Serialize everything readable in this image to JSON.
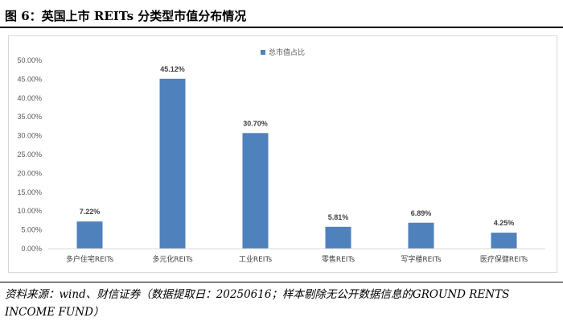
{
  "figure": {
    "title": "图 6：英国上市 REITs 分类型市值分布情况",
    "source": "资料来源：wind、财信证券（数据提取日：20250616；样本剔除无公开数据信息的GROUND RENTS INCOME FUND）"
  },
  "chart_data": {
    "type": "bar",
    "title": "",
    "xlabel": "",
    "ylabel": "",
    "categories": [
      "多户住宅REITs",
      "多元化REITs",
      "工业REITs",
      "零售REITs",
      "写字楼REITs",
      "医疗保健REITs"
    ],
    "series": [
      {
        "name": "总市值占比",
        "values": [
          7.22,
          45.12,
          30.7,
          5.81,
          6.89,
          4.25
        ],
        "labels": [
          "7.22%",
          "45.12%",
          "30.70%",
          "5.81%",
          "6.89%",
          "4.25%"
        ]
      }
    ],
    "yticks": [
      "0.00%",
      "5.00%",
      "10.00%",
      "15.00%",
      "20.00%",
      "25.00%",
      "30.00%",
      "35.00%",
      "40.00%",
      "45.00%",
      "50.00%"
    ],
    "ylim": [
      0,
      50
    ],
    "grid": false,
    "legend_position": "top-center",
    "bar_color": "#4f81bd"
  }
}
